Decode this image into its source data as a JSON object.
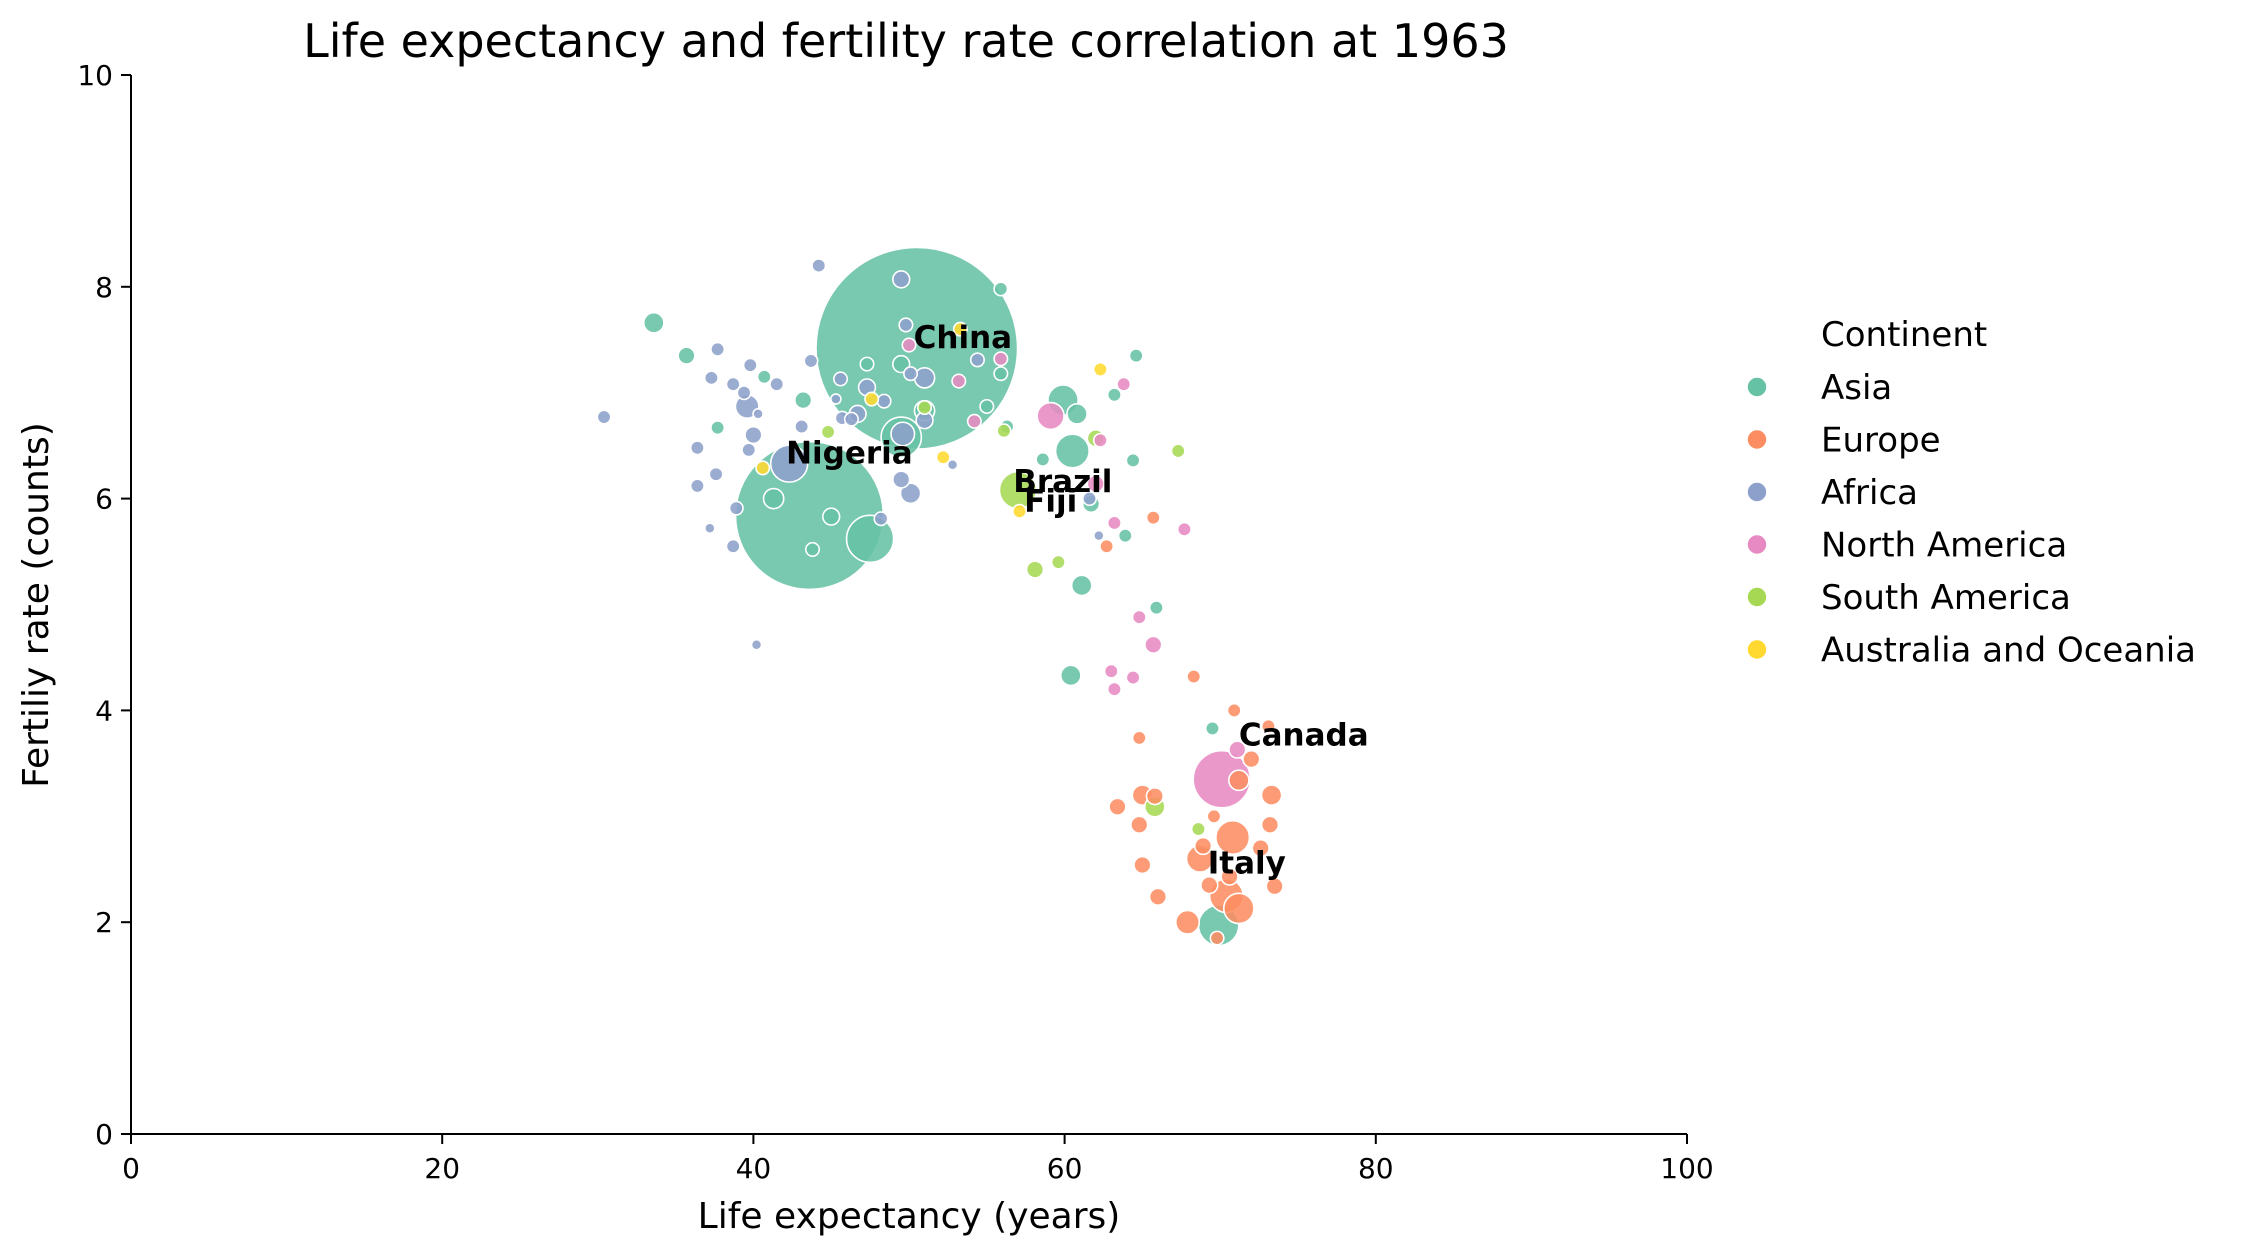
{
  "chart_data": {
    "type": "scatter",
    "title": "Life expectancy and fertility rate correlation at 1963",
    "xlabel": "Life expectancy (years)",
    "ylabel": "Fertiliy rate (counts)",
    "xlim": [
      0,
      100
    ],
    "ylim": [
      0,
      10
    ],
    "x_ticks": [
      0,
      20,
      40,
      60,
      80,
      100
    ],
    "y_ticks": [
      0,
      2,
      4,
      6,
      8,
      10
    ],
    "grid": false,
    "legend": {
      "title": "Continent",
      "placement": "right, outside plot",
      "entries": [
        "Asia",
        "Europe",
        "Africa",
        "North America",
        "South America",
        "Australia and Oceania"
      ]
    },
    "point_size_encoding": "population (relative radius)",
    "series": [
      {
        "name": "Asia",
        "color": "#66c2a5",
        "points": [
          [
            50.5,
            7.42,
            60
          ],
          [
            43.6,
            5.84,
            44
          ],
          [
            47.5,
            5.62,
            14
          ],
          [
            49.5,
            6.58,
            12
          ],
          [
            59.9,
            6.93,
            9
          ],
          [
            60.5,
            6.45,
            10
          ],
          [
            33.6,
            7.66,
            6
          ],
          [
            35.7,
            7.35,
            5
          ],
          [
            37.7,
            6.67,
            4
          ],
          [
            40.7,
            7.15,
            4
          ],
          [
            43.2,
            6.93,
            5
          ],
          [
            45.0,
            5.83,
            5
          ],
          [
            47.3,
            7.27,
            4
          ],
          [
            49.5,
            7.27,
            5
          ],
          [
            55.9,
            7.98,
            4
          ],
          [
            55.0,
            6.87,
            4
          ],
          [
            56.3,
            6.68,
            4
          ],
          [
            58.6,
            6.37,
            4
          ],
          [
            60.8,
            6.8,
            6
          ],
          [
            61.1,
            5.18,
            6
          ],
          [
            63.2,
            6.98,
            4
          ],
          [
            64.6,
            7.35,
            4
          ],
          [
            64.4,
            6.36,
            4
          ],
          [
            65.9,
            4.97,
            4
          ],
          [
            60.4,
            4.33,
            6
          ],
          [
            63.9,
            5.65,
            4
          ],
          [
            69.9,
            1.97,
            12
          ],
          [
            69.5,
            3.83,
            4
          ],
          [
            61.7,
            5.95,
            5
          ],
          [
            55.9,
            7.18,
            4
          ],
          [
            51.0,
            6.83,
            6
          ],
          [
            41.3,
            6.0,
            6
          ],
          [
            43.8,
            5.52,
            4
          ]
        ]
      },
      {
        "name": "Europe",
        "color": "#fc8d62",
        "points": [
          [
            70.4,
            2.25,
            10
          ],
          [
            71.2,
            2.13,
            9
          ],
          [
            70.8,
            2.8,
            10
          ],
          [
            68.7,
            2.6,
            8
          ],
          [
            73.3,
            3.2,
            6
          ],
          [
            67.9,
            2.0,
            7
          ],
          [
            66.0,
            2.24,
            5
          ],
          [
            65.0,
            2.54,
            5
          ],
          [
            64.8,
            2.92,
            5
          ],
          [
            63.4,
            3.09,
            5
          ],
          [
            65.0,
            3.2,
            6
          ],
          [
            65.8,
            3.19,
            5
          ],
          [
            69.6,
            3.0,
            4
          ],
          [
            71.2,
            3.34,
            6
          ],
          [
            72.0,
            3.54,
            5
          ],
          [
            73.5,
            2.34,
            5
          ],
          [
            73.2,
            2.92,
            5
          ],
          [
            70.6,
            2.43,
            5
          ],
          [
            69.3,
            2.35,
            5
          ],
          [
            70.9,
            4.0,
            4
          ],
          [
            68.3,
            4.32,
            4
          ],
          [
            64.8,
            3.74,
            4
          ],
          [
            62.7,
            5.55,
            4
          ],
          [
            65.7,
            5.82,
            4
          ],
          [
            73.1,
            3.85,
            4
          ],
          [
            72.6,
            2.7,
            5
          ],
          [
            69.8,
            1.85,
            4
          ],
          [
            68.9,
            2.72,
            5
          ]
        ]
      },
      {
        "name": "Africa",
        "color": "#8da0cb",
        "points": [
          [
            42.3,
            6.33,
            11
          ],
          [
            46.7,
            6.8,
            5
          ],
          [
            49.6,
            6.61,
            7
          ],
          [
            47.3,
            7.05,
            5
          ],
          [
            48.4,
            6.92,
            4
          ],
          [
            50.1,
            6.05,
            6
          ],
          [
            49.5,
            6.18,
            5
          ],
          [
            49.5,
            8.07,
            5
          ],
          [
            44.2,
            8.2,
            4
          ],
          [
            30.4,
            6.77,
            4
          ],
          [
            36.4,
            6.12,
            4
          ],
          [
            36.4,
            6.48,
            4
          ],
          [
            37.3,
            7.14,
            4
          ],
          [
            37.7,
            7.41,
            4
          ],
          [
            37.2,
            5.72,
            3
          ],
          [
            37.6,
            6.23,
            4
          ],
          [
            38.9,
            5.91,
            4
          ],
          [
            38.7,
            5.55,
            4
          ],
          [
            39.4,
            7.0,
            4
          ],
          [
            39.6,
            6.87,
            7
          ],
          [
            39.8,
            7.26,
            4
          ],
          [
            40.0,
            6.6,
            5
          ],
          [
            39.7,
            6.46,
            4
          ],
          [
            40.2,
            4.62,
            3
          ],
          [
            41.5,
            7.08,
            4
          ],
          [
            43.1,
            6.68,
            4
          ],
          [
            43.7,
            7.3,
            4
          ],
          [
            45.3,
            6.94,
            3
          ],
          [
            45.6,
            7.13,
            4
          ],
          [
            45.7,
            6.76,
            4
          ],
          [
            46.3,
            6.75,
            4
          ],
          [
            49.8,
            7.64,
            4
          ],
          [
            50.1,
            7.18,
            4
          ],
          [
            51.0,
            7.14,
            6
          ],
          [
            51.0,
            6.74,
            5
          ],
          [
            52.8,
            6.32,
            3
          ],
          [
            54.4,
            7.31,
            4
          ],
          [
            48.2,
            5.81,
            4
          ],
          [
            61.6,
            6.0,
            4
          ],
          [
            62.2,
            5.65,
            3
          ],
          [
            38.7,
            7.08,
            4
          ],
          [
            40.3,
            6.8,
            3
          ]
        ]
      },
      {
        "name": "North America",
        "color": "#e78ac3",
        "points": [
          [
            70.1,
            3.35,
            17
          ],
          [
            71.1,
            3.63,
            5
          ],
          [
            59.1,
            6.78,
            8
          ],
          [
            63.8,
            7.08,
            4
          ],
          [
            62.0,
            6.14,
            5
          ],
          [
            65.7,
            4.62,
            5
          ],
          [
            64.8,
            4.88,
            4
          ],
          [
            63.0,
            4.37,
            4
          ],
          [
            64.4,
            4.31,
            4
          ],
          [
            63.2,
            4.2,
            4
          ],
          [
            67.7,
            5.71,
            4
          ],
          [
            63.2,
            5.77,
            4
          ],
          [
            50.0,
            7.45,
            4
          ],
          [
            53.2,
            7.11,
            4
          ],
          [
            55.9,
            7.32,
            4
          ],
          [
            54.2,
            6.73,
            4
          ],
          [
            62.3,
            6.55,
            4
          ]
        ]
      },
      {
        "name": "South America",
        "color": "#a6d854",
        "points": [
          [
            57.0,
            6.08,
            11
          ],
          [
            65.8,
            3.09,
            6
          ],
          [
            68.6,
            2.88,
            4
          ],
          [
            58.1,
            5.33,
            5
          ],
          [
            59.6,
            5.4,
            4
          ],
          [
            62.0,
            6.57,
            5
          ],
          [
            67.3,
            6.45,
            4
          ],
          [
            56.1,
            6.64,
            4
          ],
          [
            44.8,
            6.63,
            4
          ],
          [
            51.0,
            6.86,
            4
          ]
        ]
      },
      {
        "name": "Australia and Oceania",
        "color": "#ffd92f",
        "points": [
          [
            57.1,
            5.88,
            4
          ],
          [
            62.3,
            7.22,
            4
          ],
          [
            40.6,
            6.29,
            4
          ],
          [
            47.6,
            6.94,
            4
          ],
          [
            52.2,
            6.39,
            4
          ],
          [
            53.3,
            7.6,
            4
          ]
        ]
      }
    ],
    "annotations": [
      {
        "text": "China",
        "x": 50.3,
        "y": 7.42
      },
      {
        "text": "Nigeria",
        "x": 42.1,
        "y": 6.33
      },
      {
        "text": "Brazil",
        "x": 56.7,
        "y": 6.06
      },
      {
        "text": "Fiji",
        "x": 57.4,
        "y": 5.88
      },
      {
        "text": "Canada",
        "x": 71.2,
        "y": 3.67
      },
      {
        "text": "Italy",
        "x": 69.2,
        "y": 2.46
      }
    ]
  }
}
